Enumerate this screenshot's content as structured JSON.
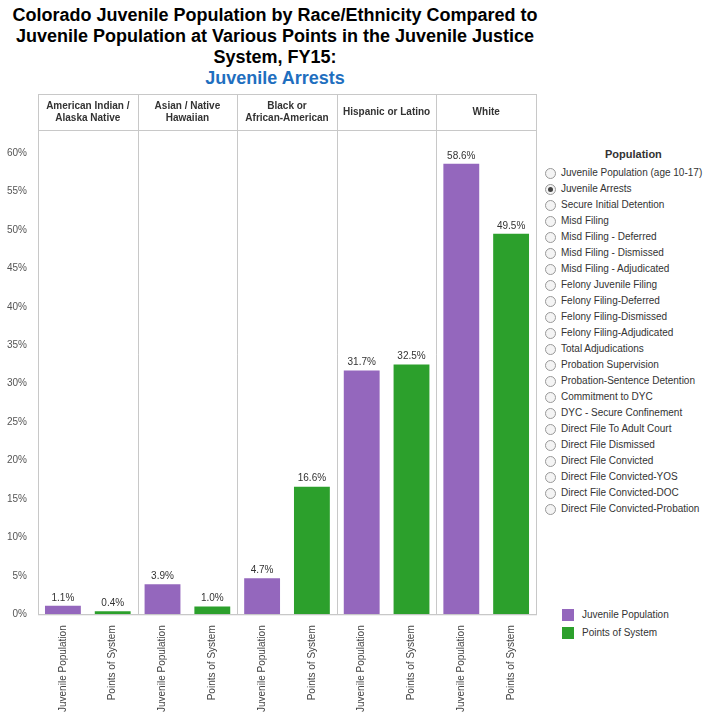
{
  "chart_data": {
    "type": "bar",
    "title": "Colorado Juvenile Population by Race/Ethnicity Compared to Juvenile Population at Various Points in the Juvenile Justice System, FY15:",
    "subtitle": "Juvenile Arrests",
    "categories": [
      "American Indian / Alaska Native",
      "Asian / Native Hawaiian",
      "Black or African-American",
      "Hispanic or Latino",
      "White"
    ],
    "series": [
      {
        "name": "Juvenile Population",
        "color": "#9467bd",
        "values": [
          1.1,
          3.9,
          4.7,
          31.7,
          58.6
        ],
        "value_labels": [
          "1.1%",
          "3.9%",
          "4.7%",
          "31.7%",
          "58.6%"
        ]
      },
      {
        "name": "Points of System",
        "color": "#2ca02c",
        "values": [
          0.4,
          1.0,
          16.6,
          32.5,
          49.5
        ],
        "value_labels": [
          "0.4%",
          "1.0%",
          "16.6%",
          "32.5%",
          "49.5%"
        ]
      }
    ],
    "ylim": [
      0,
      63
    ],
    "yticks": [
      {
        "value": 0,
        "label": "0%"
      },
      {
        "value": 5,
        "label": "5%"
      },
      {
        "value": 10,
        "label": "10%"
      },
      {
        "value": 15,
        "label": "15%"
      },
      {
        "value": 20,
        "label": "20%"
      },
      {
        "value": 25,
        "label": "25%"
      },
      {
        "value": 30,
        "label": "30%"
      },
      {
        "value": 35,
        "label": "35%"
      },
      {
        "value": 40,
        "label": "40%"
      },
      {
        "value": 45,
        "label": "45%"
      },
      {
        "value": 50,
        "label": "50%"
      },
      {
        "value": 55,
        "label": "55%"
      },
      {
        "value": 60,
        "label": "60%"
      }
    ],
    "grid": false,
    "data_labels": true,
    "legend": "lower right"
  },
  "filter": {
    "title": "Population",
    "selected": "Juvenile Arrests",
    "options": [
      "Juvenile Population (age 10-17)",
      "Juvenile Arrests",
      "Secure Initial Detention",
      "Misd Filing",
      "Misd Filing - Deferred",
      "Misd Filing - Dismissed",
      "Misd Filing - Adjudicated",
      "Felony Juvenile Filing",
      "Felony Filing-Deferred",
      "Felony Filing-Dismissed",
      "Felony Filing-Adjudicated",
      "Total Adjudications",
      "Probation Supervision",
      "Probation-Sentence Detention",
      "Commitment to DYC",
      "DYC - Secure Confinement",
      "Direct File To Adult Court",
      "Direct File Dismissed",
      "Direct File Convicted",
      "Direct File Convicted-YOS",
      "Direct File Convicted-DOC",
      "Direct File Convicted-Probation"
    ]
  }
}
